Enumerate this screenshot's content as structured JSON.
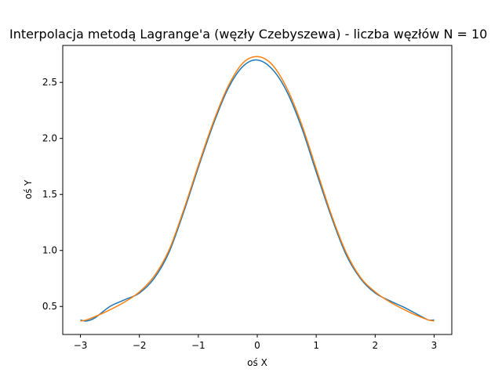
{
  "chart_data": {
    "type": "line",
    "title": "Interpolacja metodą Lagrange'a (węzły Czebyszewa) - liczba węzłów N = 10",
    "xlabel": "oś X",
    "ylabel": "oś Y",
    "xlim": [
      -3.3,
      3.3
    ],
    "ylim": [
      0.25,
      2.83
    ],
    "xticks": [
      -3,
      -2,
      -1,
      0,
      1,
      2,
      3
    ],
    "xtick_labels": [
      "−3",
      "−2",
      "−1",
      "0",
      "1",
      "2",
      "3"
    ],
    "yticks": [
      0.5,
      1.0,
      1.5,
      2.0,
      2.5
    ],
    "ytick_labels": [
      "0.5",
      "1.0",
      "1.5",
      "2.0",
      "2.5"
    ],
    "grid": false,
    "series": [
      {
        "color": "#1f77b4",
        "x": [
          -3.0,
          -2.9,
          -2.75,
          -2.5,
          -2.25,
          -2.0,
          -1.75,
          -1.5,
          -1.25,
          -1.0,
          -0.75,
          -0.5,
          -0.25,
          0.0,
          0.25,
          0.5,
          0.75,
          1.0,
          1.25,
          1.5,
          1.75,
          2.0,
          2.25,
          2.5,
          2.75,
          2.9,
          3.0
        ],
        "y": [
          0.38,
          0.37,
          0.4,
          0.5,
          0.56,
          0.62,
          0.75,
          0.98,
          1.34,
          1.74,
          2.12,
          2.44,
          2.64,
          2.7,
          2.62,
          2.42,
          2.1,
          1.7,
          1.31,
          0.97,
          0.75,
          0.62,
          0.55,
          0.49,
          0.42,
          0.38,
          0.38
        ]
      },
      {
        "color": "#ff7f0e",
        "x": [
          -3.0,
          -2.9,
          -2.75,
          -2.5,
          -2.25,
          -2.0,
          -1.75,
          -1.5,
          -1.25,
          -1.0,
          -0.75,
          -0.5,
          -0.25,
          0.0,
          0.25,
          0.5,
          0.75,
          1.0,
          1.25,
          1.5,
          1.75,
          2.0,
          2.25,
          2.5,
          2.75,
          2.9,
          3.0
        ],
        "y": [
          0.37,
          0.38,
          0.41,
          0.47,
          0.54,
          0.63,
          0.77,
          1.0,
          1.36,
          1.76,
          2.14,
          2.46,
          2.67,
          2.73,
          2.66,
          2.45,
          2.13,
          1.73,
          1.33,
          0.99,
          0.76,
          0.63,
          0.54,
          0.47,
          0.41,
          0.38,
          0.37
        ]
      }
    ]
  }
}
